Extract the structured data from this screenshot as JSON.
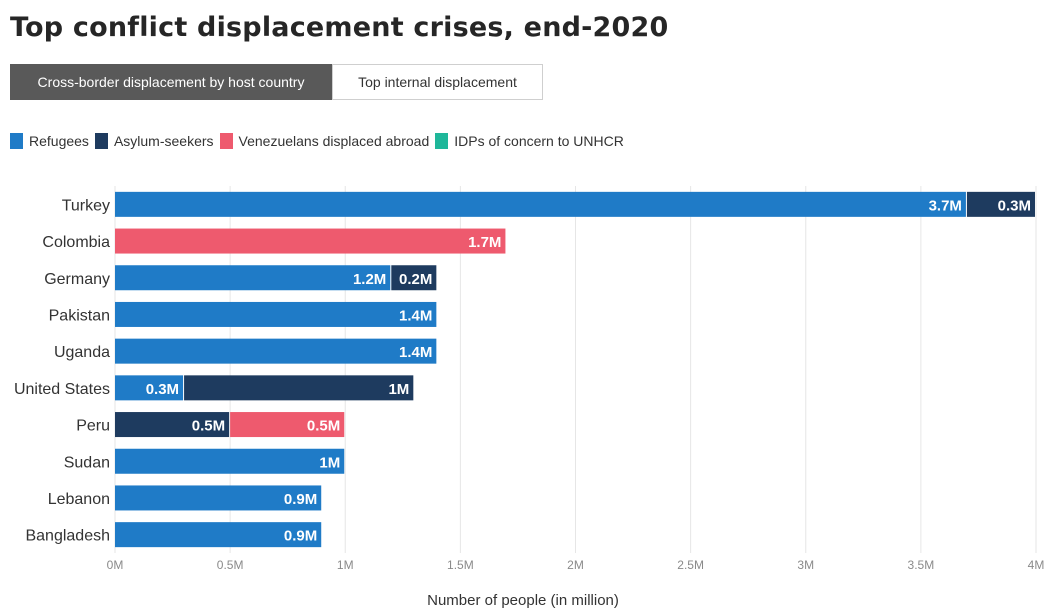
{
  "title": "Top conflict displacement crises, end-2020",
  "tabs": [
    {
      "label": "Cross-border displacement by host country",
      "active": true
    },
    {
      "label": "Top internal displacement",
      "active": false
    }
  ],
  "legend": [
    {
      "label": "Refugees",
      "color": "#1f7bc7"
    },
    {
      "label": "Asylum-seekers",
      "color": "#1e3b5f"
    },
    {
      "label": "Venezuelans displaced abroad",
      "color": "#ee5a6e"
    },
    {
      "label": "IDPs of concern to UNHCR",
      "color": "#1fb79a"
    }
  ],
  "chart_data": {
    "type": "bar",
    "orientation": "horizontal",
    "stacked": true,
    "categories": [
      "Turkey",
      "Colombia",
      "Germany",
      "Pakistan",
      "Uganda",
      "United States",
      "Peru",
      "Sudan",
      "Lebanon",
      "Bangladesh"
    ],
    "series": [
      {
        "name": "Refugees",
        "color": "#1f7bc7",
        "values": [
          3.7,
          0,
          1.2,
          1.4,
          1.4,
          0.3,
          0,
          1.0,
          0.9,
          0.9
        ],
        "labels": [
          "3.7M",
          "",
          "1.2M",
          "1.4M",
          "1.4M",
          "0.3M",
          "",
          "1M",
          "0.9M",
          "0.9M"
        ]
      },
      {
        "name": "Asylum-seekers",
        "color": "#1e3b5f",
        "values": [
          0.3,
          0,
          0.2,
          0,
          0,
          1.0,
          0.5,
          0,
          0,
          0
        ],
        "labels": [
          "0.3M",
          "",
          "0.2M",
          "",
          "",
          "1M",
          "0.5M",
          "",
          "",
          ""
        ]
      },
      {
        "name": "Venezuelans displaced abroad",
        "color": "#ee5a6e",
        "values": [
          0,
          1.7,
          0,
          0,
          0,
          0,
          0.5,
          0,
          0,
          0
        ],
        "labels": [
          "",
          "1.7M",
          "",
          "",
          "",
          "",
          "0.5M",
          "",
          "",
          ""
        ]
      },
      {
        "name": "IDPs of concern to UNHCR",
        "color": "#1fb79a",
        "values": [
          0,
          0,
          0,
          0,
          0,
          0,
          0,
          0,
          0,
          0
        ],
        "labels": [
          "",
          "",
          "",
          "",
          "",
          "",
          "",
          "",
          "",
          ""
        ]
      }
    ],
    "xlim": [
      0,
      4
    ],
    "xticks": [
      0,
      0.5,
      1,
      1.5,
      2,
      2.5,
      3,
      3.5,
      4
    ],
    "xtick_labels": [
      "0M",
      "0.5M",
      "1M",
      "1.5M",
      "2M",
      "2.5M",
      "3M",
      "3.5M",
      "4M"
    ],
    "xlabel": "Number of people (in million)",
    "grid": true,
    "legend_position": "top-left"
  }
}
